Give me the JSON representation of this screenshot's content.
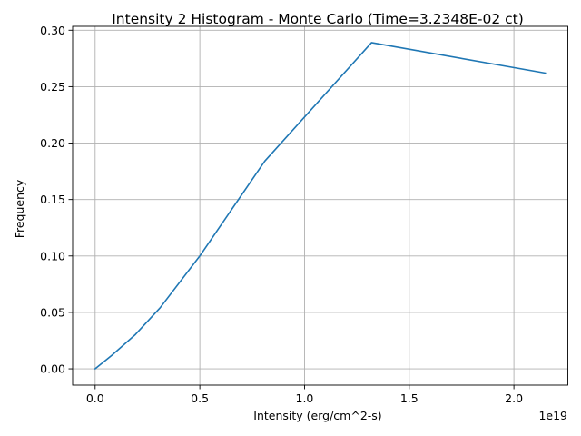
{
  "chart_data": {
    "type": "line",
    "title": "Intensity 2 Histogram - Monte Carlo (Time=3.2348E-02 ct)",
    "xlabel": "Intensity (erg/cm^2-s)",
    "ylabel": "Frequency",
    "x_offset_label": "1e19",
    "xlim": [
      -0.1075,
      2.2575
    ],
    "ylim": [
      -0.01445,
      0.30345
    ],
    "xticks": [
      0.0,
      0.5,
      1.0,
      1.5,
      2.0
    ],
    "xtick_labels": [
      "0.0",
      "0.5",
      "1.0",
      "1.5",
      "2.0"
    ],
    "yticks": [
      0.0,
      0.05,
      0.1,
      0.15,
      0.2,
      0.25,
      0.3
    ],
    "ytick_labels": [
      "0.00",
      "0.05",
      "0.10",
      "0.15",
      "0.20",
      "0.25",
      "0.30"
    ],
    "grid": true,
    "x_units_scale": "1e19",
    "series": [
      {
        "color": "#1f77b4",
        "x": [
          0.0,
          0.08,
          0.19,
          0.31,
          0.5,
          0.81,
          1.32,
          2.15
        ],
        "y": [
          0.0,
          0.012,
          0.03,
          0.054,
          0.1,
          0.184,
          0.289,
          0.262
        ]
      }
    ]
  }
}
